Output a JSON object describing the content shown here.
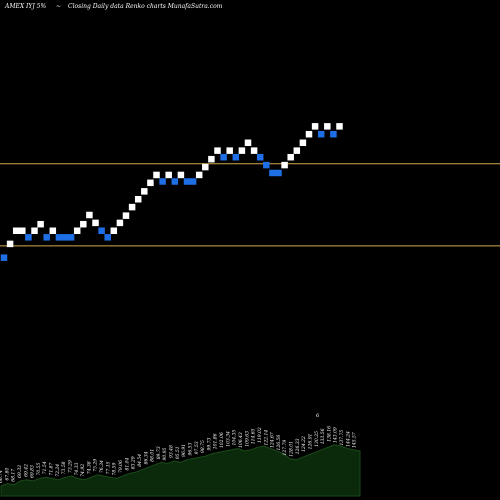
{
  "header": {
    "ticker": "AMEX IYJ 5%",
    "arrow": "~",
    "description": "Closing Daily data Renko charts MunafaSutra.com"
  },
  "colors": {
    "background": "#000000",
    "up_brick": "#ffffff",
    "down_brick": "#1e6fe6",
    "reference_line": "#d4a94a",
    "volume_area": "#0b2a0b",
    "volume_stroke": "#1a4a1a",
    "volume_label": "#ffffff"
  },
  "chart_data": {
    "type": "renko",
    "title": "Closing Daily data Renko charts MunafaSutra.com",
    "brick_size_label": "5%",
    "ylim": [
      75,
      135
    ],
    "reference_lines": [
      112.8,
      100.3
    ],
    "bricks": [
      {
        "d": "down",
        "v": 98.5
      },
      {
        "d": "up",
        "v": 100.6
      },
      {
        "d": "up",
        "v": 102.6
      },
      {
        "d": "up",
        "v": 102.6
      },
      {
        "d": "down",
        "v": 101.6
      },
      {
        "d": "up",
        "v": 102.6
      },
      {
        "d": "up",
        "v": 103.6
      },
      {
        "d": "down",
        "v": 101.6
      },
      {
        "d": "up",
        "v": 102.6
      },
      {
        "d": "down",
        "v": 101.6
      },
      {
        "d": "down",
        "v": 101.6
      },
      {
        "d": "down",
        "v": 101.6
      },
      {
        "d": "up",
        "v": 102.6
      },
      {
        "d": "up",
        "v": 103.6
      },
      {
        "d": "up",
        "v": 105.0
      },
      {
        "d": "up",
        "v": 103.8
      },
      {
        "d": "down",
        "v": 102.6
      },
      {
        "d": "down",
        "v": 101.6
      },
      {
        "d": "up",
        "v": 102.6
      },
      {
        "d": "up",
        "v": 103.8
      },
      {
        "d": "up",
        "v": 104.9
      },
      {
        "d": "up",
        "v": 106.2
      },
      {
        "d": "up",
        "v": 107.4
      },
      {
        "d": "up",
        "v": 108.6
      },
      {
        "d": "up",
        "v": 109.9
      },
      {
        "d": "up",
        "v": 111.1
      },
      {
        "d": "down",
        "v": 110.1
      },
      {
        "d": "up",
        "v": 111.1
      },
      {
        "d": "down",
        "v": 110.1
      },
      {
        "d": "up",
        "v": 111.1
      },
      {
        "d": "down",
        "v": 110.1
      },
      {
        "d": "down",
        "v": 110.1
      },
      {
        "d": "up",
        "v": 111.1
      },
      {
        "d": "up",
        "v": 112.3
      },
      {
        "d": "up",
        "v": 113.5
      },
      {
        "d": "up",
        "v": 114.8
      },
      {
        "d": "down",
        "v": 113.8
      },
      {
        "d": "up",
        "v": 114.8
      },
      {
        "d": "down",
        "v": 113.8
      },
      {
        "d": "up",
        "v": 114.8
      },
      {
        "d": "up",
        "v": 116.0
      },
      {
        "d": "up",
        "v": 114.8
      },
      {
        "d": "down",
        "v": 113.8
      },
      {
        "d": "down",
        "v": 112.6
      },
      {
        "d": "down",
        "v": 111.4
      },
      {
        "d": "down",
        "v": 111.4
      },
      {
        "d": "up",
        "v": 112.6
      },
      {
        "d": "up",
        "v": 113.8
      },
      {
        "d": "up",
        "v": 114.8
      },
      {
        "d": "up",
        "v": 116.0
      },
      {
        "d": "up",
        "v": 117.3
      },
      {
        "d": "up",
        "v": 118.5
      },
      {
        "d": "down",
        "v": 117.3
      },
      {
        "d": "up",
        "v": 118.5
      },
      {
        "d": "down",
        "v": 117.3
      },
      {
        "d": "up",
        "v": 118.5
      }
    ],
    "volume_values": [
      8,
      10,
      9,
      12,
      13,
      12,
      14,
      15,
      14,
      13,
      15,
      16,
      14,
      13,
      15,
      17,
      16,
      15,
      14,
      16,
      18,
      19,
      21,
      23,
      25,
      27,
      26,
      28,
      27,
      29,
      30,
      31,
      32,
      34,
      35,
      36,
      37,
      38,
      36,
      37,
      39,
      40,
      38,
      36,
      34,
      30,
      29,
      31,
      33,
      35,
      37,
      39,
      41,
      40,
      38,
      37,
      36
    ],
    "volume_labels": [
      "66.74",
      "67.80",
      "68.17",
      "69.33",
      "69.42",
      "69.83",
      "70.55",
      "71.54",
      "71.87",
      "72.24",
      "73.58",
      "73.29",
      "74.33",
      "74.92",
      "74.38",
      "75.29",
      "76.34",
      "77.15",
      "78.59",
      "79.06",
      "81.04",
      "83.29",
      "84.54",
      "86.34",
      "88.01",
      "89.73",
      "90.95",
      "93.48",
      "95.51",
      "96.91",
      "96.53",
      "97.53",
      "98.75",
      "99.73",
      "101.86",
      "102.06",
      "103.34",
      "104.35",
      "106.43",
      "109.63",
      "114.65",
      "119.02",
      "122.14",
      "124.67",
      "126.56",
      "127.79",
      "128.01",
      "126.33",
      "124.22",
      "126.91",
      "130.25",
      "133.56",
      "138.16",
      "143.09",
      "137.75",
      "144.24",
      "145.57"
    ],
    "volume_peak_marker": "6"
  }
}
